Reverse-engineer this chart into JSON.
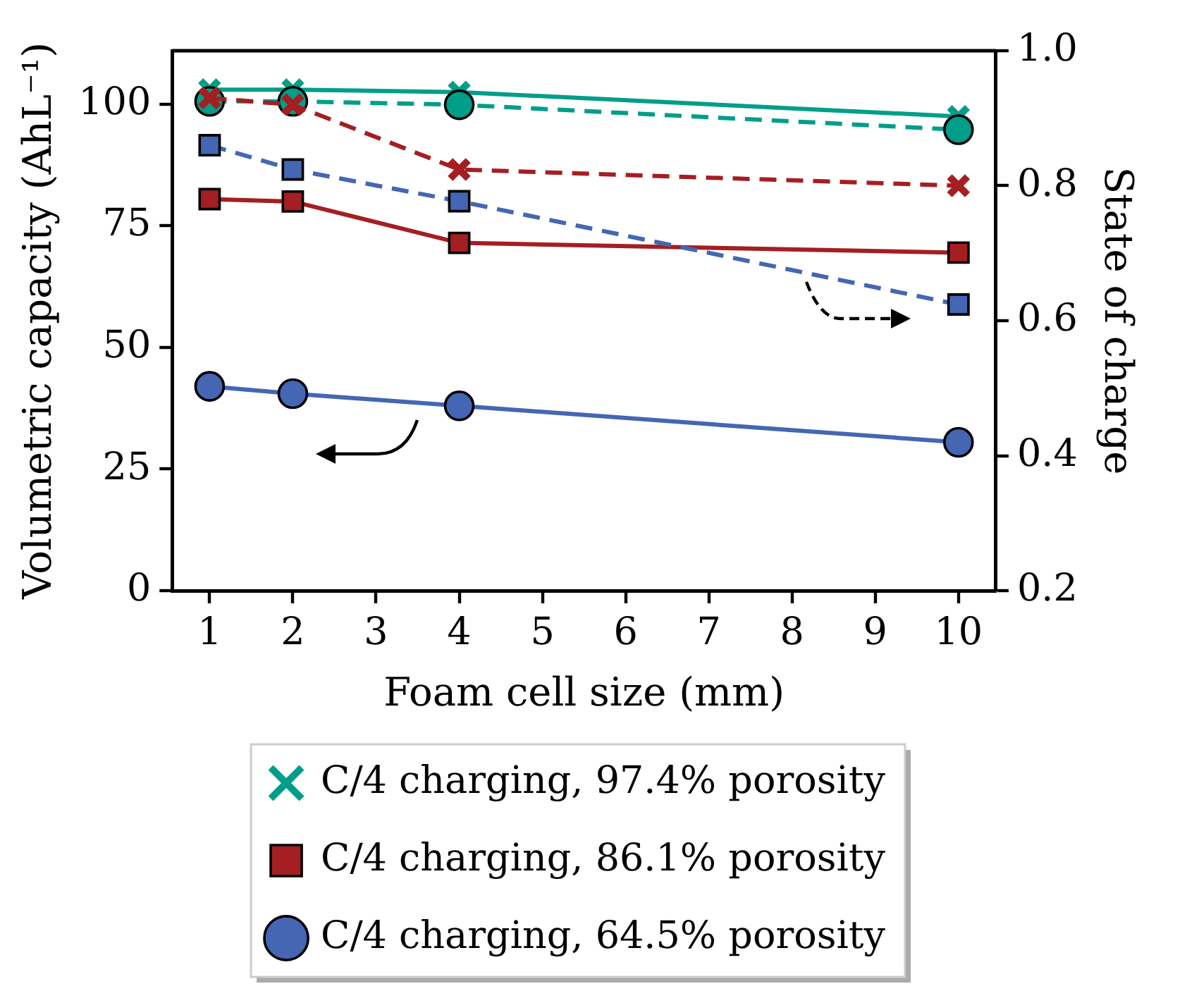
{
  "chart_data": {
    "type": "line",
    "xlabel": "Foam cell size (mm)",
    "ylabel": "Volumetric capacity (AhL⁻¹)",
    "y2label": "State of charge",
    "xlim": [
      0.55,
      10.45
    ],
    "xticks": [
      1,
      2,
      3,
      4,
      5,
      6,
      7,
      8,
      9,
      10
    ],
    "ylim": [
      0,
      111
    ],
    "yticks": [
      0,
      25,
      50,
      75,
      100
    ],
    "y2lim": [
      0.2,
      1.0
    ],
    "y2ticks": [
      {
        "value": 0.2,
        "label": "0.2"
      },
      {
        "value": 0.4,
        "label": "0.4"
      },
      {
        "value": 0.6,
        "label": "0.6"
      },
      {
        "value": 0.8,
        "label": "0.8"
      },
      {
        "value": 1.0,
        "label": "1.0"
      }
    ],
    "grid": false,
    "legend": "bottom",
    "series": [
      {
        "name": "C/4 charging, 97.4% porosity",
        "color": "#009e89",
        "x": [
          1,
          2,
          4,
          10
        ],
        "values": [
          103,
          103,
          102.5,
          97.5
        ],
        "marker": "cross",
        "line_style": "solid"
      },
      {
        "name": "C/4 charging, 86.1% porosity",
        "color": "#a51e22",
        "x": [
          1,
          2,
          4,
          10
        ],
        "values": [
          80.5,
          80,
          71.5,
          69.5
        ],
        "marker": "square",
        "line_style": "solid"
      },
      {
        "name": "C/4 charging, 64.5% porosity",
        "color": "#4466b3",
        "x": [
          1,
          2,
          4,
          10
        ],
        "values": [
          42,
          40.5,
          38,
          30.5
        ],
        "marker": "circle",
        "line_style": "solid"
      },
      {
        "color": "#009e89",
        "x": [
          1,
          2,
          4,
          10
        ],
        "values": [
          0.925,
          0.925,
          0.92,
          0.883
        ],
        "marker": "circle",
        "line_style": "dashed",
        "axis": "y2"
      },
      {
        "color": "#a51e22",
        "x": [
          1,
          2,
          4,
          10
        ],
        "values": [
          0.93,
          0.92,
          0.824,
          0.8
        ],
        "marker": "cross",
        "line_style": "dashed",
        "axis": "y2"
      },
      {
        "color": "#4466b3",
        "x": [
          1,
          2,
          4,
          10
        ],
        "values": [
          0.86,
          0.824,
          0.777,
          0.624
        ],
        "marker": "square",
        "line_style": "dashed",
        "axis": "y2"
      }
    ]
  }
}
